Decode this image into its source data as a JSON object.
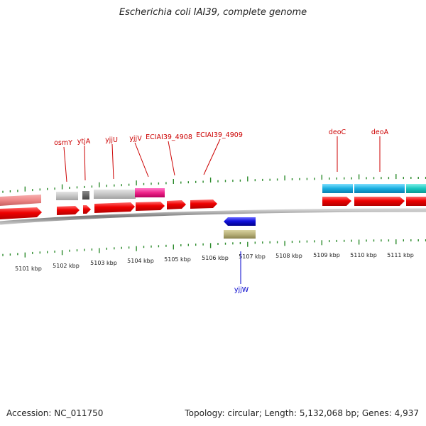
{
  "title": "Escherichia coli IAI39, complete genome",
  "footer": {
    "accession": "Accession: NC_011750",
    "summary": "Topology: circular; Length: 5,132,068 bp; Genes: 4,937"
  },
  "colors": {
    "plus_strand_gene": "#ee1111",
    "minus_strand_gene": "#1111dd",
    "tick": "#2a8a2a",
    "backbone": "#8a8a8a",
    "label_plus": "#cc0000",
    "label_minus": "#0000cc"
  },
  "kbp_labels": [
    "5101 kbp",
    "5102 kbp",
    "5103 kbp",
    "5104 kbp",
    "5105 kbp",
    "5106 kbp",
    "5107 kbp",
    "5108 kbp",
    "5109 kbp",
    "5110 kbp",
    "5111 kbp"
  ],
  "gene_labels": [
    {
      "name": "osmY",
      "strand": "plus"
    },
    {
      "name": "ytjA",
      "strand": "plus"
    },
    {
      "name": "yjjU",
      "strand": "plus"
    },
    {
      "name": "yjjV",
      "strand": "plus"
    },
    {
      "name": "ECIAI39_4908",
      "strand": "plus"
    },
    {
      "name": "ECIAI39_4909",
      "strand": "plus"
    },
    {
      "name": "deoC",
      "strand": "plus"
    },
    {
      "name": "deoA",
      "strand": "plus"
    },
    {
      "name": "yjjW",
      "strand": "minus"
    }
  ]
}
